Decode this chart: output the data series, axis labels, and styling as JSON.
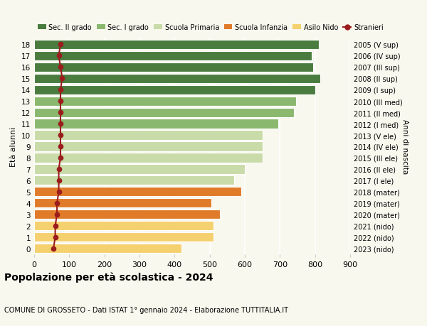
{
  "ages": [
    0,
    1,
    2,
    3,
    4,
    5,
    6,
    7,
    8,
    9,
    10,
    11,
    12,
    13,
    14,
    15,
    16,
    17,
    18
  ],
  "bar_values": [
    420,
    510,
    510,
    530,
    505,
    590,
    570,
    600,
    650,
    650,
    650,
    695,
    740,
    745,
    800,
    815,
    795,
    790,
    810
  ],
  "stranieri_values": [
    55,
    60,
    60,
    65,
    65,
    70,
    70,
    70,
    75,
    75,
    75,
    75,
    75,
    75,
    75,
    80,
    75,
    70,
    75
  ],
  "right_labels": [
    "2023 (nido)",
    "2022 (nido)",
    "2021 (nido)",
    "2020 (mater)",
    "2019 (mater)",
    "2018 (mater)",
    "2017 (I ele)",
    "2016 (II ele)",
    "2015 (III ele)",
    "2014 (IV ele)",
    "2013 (V ele)",
    "2012 (I med)",
    "2011 (II med)",
    "2010 (III med)",
    "2009 (I sup)",
    "2008 (II sup)",
    "2007 (III sup)",
    "2006 (IV sup)",
    "2005 (V sup)"
  ],
  "bar_colors": [
    "#f5d06e",
    "#f5d06e",
    "#f5d06e",
    "#e07b2a",
    "#e07b2a",
    "#e07b2a",
    "#c8dba8",
    "#c8dba8",
    "#c8dba8",
    "#c8dba8",
    "#c8dba8",
    "#8ab86e",
    "#8ab86e",
    "#8ab86e",
    "#4a7c3f",
    "#4a7c3f",
    "#4a7c3f",
    "#4a7c3f",
    "#4a7c3f"
  ],
  "stranieri_color": "#9b1c1c",
  "background_color": "#f8f8ee",
  "plot_bg_color": "#f8f8ee",
  "title": "Popolazione per età scolastica - 2024",
  "subtitle": "COMUNE DI GROSSETO - Dati ISTAT 1° gennaio 2024 - Elaborazione TUTTITALIA.IT",
  "ylabel": "Età alunni",
  "right_ylabel": "Anni di nascita",
  "xlim": [
    0,
    900
  ],
  "xticks": [
    0,
    100,
    200,
    300,
    400,
    500,
    600,
    700,
    800,
    900
  ],
  "legend_labels": [
    "Sec. II grado",
    "Sec. I grado",
    "Scuola Primaria",
    "Scuola Infanzia",
    "Asilo Nido",
    "Stranieri"
  ],
  "legend_colors": [
    "#4a7c3f",
    "#8ab86e",
    "#c8dba8",
    "#e07b2a",
    "#f5d06e",
    "#9b1c1c"
  ]
}
